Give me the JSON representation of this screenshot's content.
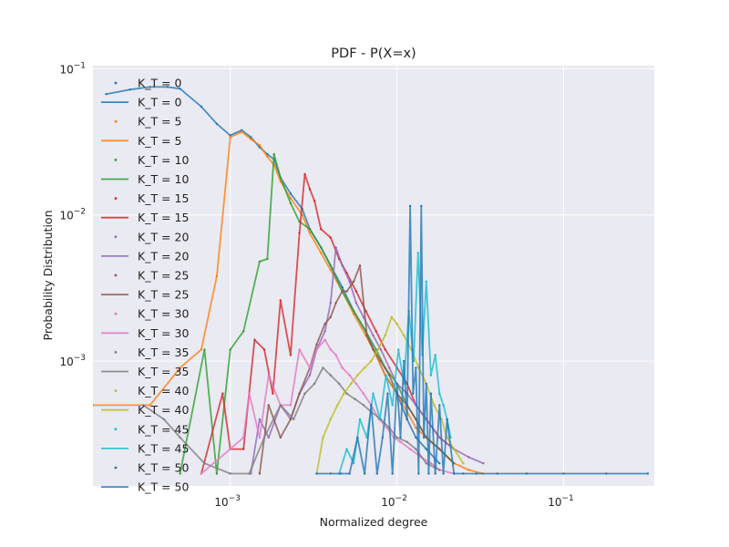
{
  "chart_data": {
    "type": "line",
    "title": "PDF - P(X=x)",
    "xlabel": "Normalized degree",
    "ylabel": "Probability Distribution",
    "xscale": "log",
    "yscale": "log",
    "xlim": [
      0.00015,
      0.35
    ],
    "ylim": [
      0.00014,
      0.105
    ],
    "grid": true,
    "legend_position": "top-left",
    "x_ticks": [
      {
        "value": 0.001,
        "label": "10",
        "sup": "−3"
      },
      {
        "value": 0.01,
        "label": "10",
        "sup": "−2"
      },
      {
        "value": 0.1,
        "label": "10",
        "sup": "−1"
      }
    ],
    "y_ticks": [
      {
        "value": 0.001,
        "label": "10",
        "sup": "−3"
      },
      {
        "value": 0.01,
        "label": "10",
        "sup": "−2"
      },
      {
        "value": 0.1,
        "label": "10",
        "sup": "−1"
      }
    ],
    "legend": [
      {
        "label": "K_T = 0",
        "kind": "marker",
        "series": 0
      },
      {
        "label": "K_T = 0",
        "kind": "line",
        "series": 0
      },
      {
        "label": "K_T = 5",
        "kind": "marker",
        "series": 1
      },
      {
        "label": "K_T = 5",
        "kind": "line",
        "series": 1
      },
      {
        "label": "K_T = 10",
        "kind": "marker",
        "series": 2
      },
      {
        "label": "K_T = 10",
        "kind": "line",
        "series": 2
      },
      {
        "label": "K_T = 15",
        "kind": "marker",
        "series": 3
      },
      {
        "label": "K_T = 15",
        "kind": "line",
        "series": 3
      },
      {
        "label": "K_T = 20",
        "kind": "marker",
        "series": 4
      },
      {
        "label": "K_T = 20",
        "kind": "line",
        "series": 4
      },
      {
        "label": "K_T = 25",
        "kind": "marker",
        "series": 5
      },
      {
        "label": "K_T = 25",
        "kind": "line",
        "series": 5
      },
      {
        "label": "K_T = 30",
        "kind": "marker",
        "series": 6
      },
      {
        "label": "K_T = 30",
        "kind": "line",
        "series": 6
      },
      {
        "label": "K_T = 35",
        "kind": "marker",
        "series": 7
      },
      {
        "label": "K_T = 35",
        "kind": "line",
        "series": 7
      },
      {
        "label": "K_T = 40",
        "kind": "marker",
        "series": 8
      },
      {
        "label": "K_T = 40",
        "kind": "line",
        "series": 8
      },
      {
        "label": "K_T = 45",
        "kind": "marker",
        "series": 9
      },
      {
        "label": "K_T = 45",
        "kind": "line",
        "series": 9
      },
      {
        "label": "K_T = 50",
        "kind": "marker",
        "series": 10
      },
      {
        "label": "K_T = 50",
        "kind": "line",
        "series": 10
      }
    ],
    "series": [
      {
        "name": "K_T = 0",
        "color": "#1f77b4",
        "x": [
          0.00018,
          0.00025,
          0.00033,
          0.00042,
          0.0005,
          0.00067,
          0.00083,
          0.001,
          0.00117,
          0.00133,
          0.0015,
          0.00167,
          0.00183,
          0.002,
          0.0023,
          0.0027,
          0.003,
          0.0035,
          0.004,
          0.0047,
          0.0055,
          0.0065,
          0.0075,
          0.0085,
          0.01,
          0.0115,
          0.013,
          0.015,
          0.018
        ],
        "y": [
          0.067,
          0.072,
          0.075,
          0.075,
          0.073,
          0.055,
          0.042,
          0.035,
          0.038,
          0.034,
          0.029,
          0.026,
          0.024,
          0.018,
          0.014,
          0.011,
          0.008,
          0.006,
          0.0045,
          0.0032,
          0.0022,
          0.0016,
          0.0011,
          0.0008,
          0.0006,
          0.0004,
          0.0003,
          0.00025,
          0.0002
        ]
      },
      {
        "name": "K_T = 5",
        "color": "#ff7f0e",
        "x": [
          0.00015,
          0.00033,
          0.0005,
          0.00067,
          0.00083,
          0.001,
          0.00117,
          0.00133,
          0.0015,
          0.00167,
          0.00183,
          0.002,
          0.0023,
          0.0027,
          0.003,
          0.0035,
          0.004,
          0.0047,
          0.0055,
          0.0065,
          0.0075,
          0.0085,
          0.01,
          0.0115,
          0.013,
          0.015,
          0.018,
          0.022,
          0.027,
          0.033
        ],
        "y": [
          0.0005,
          0.0005,
          0.0009,
          0.0012,
          0.0038,
          0.034,
          0.037,
          0.033,
          0.03,
          0.025,
          0.022,
          0.017,
          0.013,
          0.01,
          0.0075,
          0.0055,
          0.0042,
          0.003,
          0.0021,
          0.0015,
          0.0011,
          0.0008,
          0.0006,
          0.00045,
          0.00035,
          0.0003,
          0.00025,
          0.0002,
          0.00018,
          0.00017
        ]
      },
      {
        "name": "K_T = 10",
        "color": "#2ca02c",
        "x": [
          0.0005,
          0.0007,
          0.00083,
          0.001,
          0.0012,
          0.0015,
          0.00167,
          0.00183,
          0.002,
          0.0023,
          0.0026,
          0.003,
          0.0035,
          0.004,
          0.0047,
          0.0055,
          0.0065,
          0.0075,
          0.0085,
          0.01,
          0.0115,
          0.013,
          0.015,
          0.018,
          0.022
        ],
        "y": [
          0.00017,
          0.0012,
          0.00017,
          0.0012,
          0.0016,
          0.0048,
          0.005,
          0.026,
          0.018,
          0.012,
          0.009,
          0.008,
          0.006,
          0.0045,
          0.003,
          0.0022,
          0.0016,
          0.0012,
          0.0009,
          0.0007,
          0.0005,
          0.0004,
          0.0003,
          0.00025,
          0.0002
        ]
      },
      {
        "name": "K_T = 15",
        "color": "#d62728",
        "x": [
          0.00067,
          0.0009,
          0.001,
          0.0012,
          0.0014,
          0.0016,
          0.0018,
          0.002,
          0.0023,
          0.0026,
          0.0028,
          0.003,
          0.0032,
          0.0035,
          0.004,
          0.0045,
          0.005,
          0.0057,
          0.0065,
          0.0075,
          0.0085,
          0.01,
          0.0115,
          0.013,
          0.015,
          0.018,
          0.022
        ],
        "y": [
          0.00017,
          0.0006,
          0.00025,
          0.00025,
          0.0014,
          0.0012,
          0.0006,
          0.0026,
          0.0011,
          0.0075,
          0.019,
          0.015,
          0.0125,
          0.008,
          0.007,
          0.005,
          0.004,
          0.003,
          0.0022,
          0.0016,
          0.0012,
          0.0009,
          0.0007,
          0.0005,
          0.0004,
          0.0003,
          0.00025
        ]
      },
      {
        "name": "K_T = 20",
        "color": "#9467bd",
        "x": [
          0.00133,
          0.0015,
          0.0017,
          0.002,
          0.0023,
          0.0026,
          0.003,
          0.0033,
          0.0037,
          0.004,
          0.0043,
          0.0047,
          0.0052,
          0.0057,
          0.0063,
          0.0072,
          0.008,
          0.009,
          0.01,
          0.0115,
          0.013,
          0.015,
          0.018,
          0.022,
          0.027,
          0.033
        ],
        "y": [
          0.00017,
          0.0004,
          0.0003,
          0.0005,
          0.0004,
          0.0006,
          0.0008,
          0.0012,
          0.0016,
          0.0025,
          0.006,
          0.0045,
          0.0035,
          0.0025,
          0.002,
          0.0015,
          0.0012,
          0.0009,
          0.0007,
          0.0006,
          0.0005,
          0.0004,
          0.0003,
          0.00025,
          0.00022,
          0.0002
        ]
      },
      {
        "name": "K_T = 25",
        "color": "#8c564b",
        "x": [
          0.0015,
          0.0017,
          0.002,
          0.0023,
          0.0026,
          0.003,
          0.0033,
          0.0037,
          0.004,
          0.0043,
          0.0047,
          0.005,
          0.0055,
          0.006,
          0.0066,
          0.0072,
          0.008,
          0.009,
          0.01,
          0.0115,
          0.013,
          0.015,
          0.018,
          0.022
        ],
        "y": [
          0.00017,
          0.0005,
          0.0003,
          0.0004,
          0.0006,
          0.0009,
          0.0013,
          0.0018,
          0.002,
          0.0025,
          0.003,
          0.003,
          0.0035,
          0.0045,
          0.0015,
          0.0012,
          0.001,
          0.0008,
          0.0006,
          0.0005,
          0.0004,
          0.0003,
          0.00025,
          0.0002
        ]
      },
      {
        "name": "K_T = 30",
        "color": "#e377c2",
        "x": [
          0.00067,
          0.001,
          0.0012,
          0.0013,
          0.0015,
          0.0017,
          0.002,
          0.0023,
          0.0026,
          0.003,
          0.0033,
          0.0037,
          0.004,
          0.0043,
          0.0047,
          0.0052,
          0.0057,
          0.0063,
          0.007,
          0.0078,
          0.0087,
          0.0096,
          0.0105,
          0.012,
          0.014,
          0.016,
          0.018,
          0.022
        ],
        "y": [
          0.00017,
          0.00025,
          0.0003,
          0.0006,
          0.0003,
          0.0008,
          0.0005,
          0.0005,
          0.0012,
          0.0009,
          0.0012,
          0.0014,
          0.0012,
          0.0011,
          0.0009,
          0.0008,
          0.0007,
          0.0006,
          0.0005,
          0.0004,
          0.00035,
          0.0003,
          0.00028,
          0.00025,
          0.00022,
          0.0002,
          0.00018,
          0.00017
        ]
      },
      {
        "name": "K_T = 35",
        "color": "#7f7f7f",
        "x": [
          0.0003,
          0.0004,
          0.0005,
          0.0007,
          0.001,
          0.0013,
          0.0016,
          0.002,
          0.0024,
          0.0028,
          0.0032,
          0.0036,
          0.004,
          0.0045,
          0.005,
          0.0056,
          0.0063,
          0.007,
          0.008,
          0.009,
          0.01,
          0.0115,
          0.013,
          0.015,
          0.018
        ],
        "y": [
          0.0005,
          0.0004,
          0.0003,
          0.0002,
          0.00017,
          0.00017,
          0.0003,
          0.0005,
          0.0004,
          0.0006,
          0.0007,
          0.0009,
          0.0008,
          0.0007,
          0.0006,
          0.00055,
          0.0005,
          0.00045,
          0.0004,
          0.00035,
          0.0003,
          0.00028,
          0.00025,
          0.0002,
          0.00018
        ]
      },
      {
        "name": "K_T = 40",
        "color": "#bcbd22",
        "x": [
          0.0033,
          0.0036,
          0.004,
          0.0044,
          0.0048,
          0.0053,
          0.0058,
          0.0064,
          0.007,
          0.0077,
          0.0085,
          0.0093,
          0.01,
          0.011,
          0.0122,
          0.0135,
          0.015,
          0.0167,
          0.0185,
          0.02,
          0.022,
          0.025
        ],
        "y": [
          0.00017,
          0.0003,
          0.0004,
          0.0005,
          0.0006,
          0.0007,
          0.0008,
          0.0009,
          0.001,
          0.0012,
          0.0015,
          0.002,
          0.0018,
          0.0015,
          0.0012,
          0.0009,
          0.0007,
          0.0005,
          0.0004,
          0.0003,
          0.00025,
          0.0002
        ]
      },
      {
        "name": "K_T = 45",
        "color": "#17becf",
        "x": [
          0.0045,
          0.005,
          0.0055,
          0.006,
          0.0066,
          0.0072,
          0.0079,
          0.0086,
          0.0094,
          0.0102,
          0.011,
          0.0118,
          0.0126,
          0.0134,
          0.0142,
          0.015,
          0.016,
          0.017,
          0.018,
          0.019,
          0.02,
          0.021
        ],
        "y": [
          0.00017,
          0.00025,
          0.0002,
          0.0004,
          0.0003,
          0.0006,
          0.0004,
          0.0008,
          0.0005,
          0.0012,
          0.0007,
          0.0022,
          0.001,
          0.0055,
          0.0011,
          0.0035,
          0.0008,
          0.0011,
          0.0006,
          0.0005,
          0.0004,
          0.0003
        ]
      },
      {
        "name": "K_T = 50",
        "color": "#1f77b4",
        "x": [
          0.0033,
          0.004,
          0.0046,
          0.0052,
          0.0058,
          0.0064,
          0.007,
          0.0076,
          0.0082,
          0.0088,
          0.0094,
          0.01,
          0.0105,
          0.011,
          0.0115,
          0.012,
          0.0125,
          0.013,
          0.0135,
          0.014,
          0.0145,
          0.015,
          0.0155,
          0.016,
          0.017,
          0.018,
          0.019,
          0.02,
          0.022,
          0.025,
          0.03,
          0.04,
          0.06,
          0.1,
          0.18,
          0.32
        ],
        "y": [
          0.00017,
          0.00017,
          0.00017,
          0.00017,
          0.0003,
          0.00017,
          0.0005,
          0.00017,
          0.0003,
          0.0006,
          0.00017,
          0.0007,
          0.0003,
          0.001,
          0.0004,
          0.0115,
          0.0006,
          0.0009,
          0.00017,
          0.0115,
          0.0003,
          0.0007,
          0.00017,
          0.0006,
          0.00017,
          0.0005,
          0.00017,
          0.0004,
          0.00017,
          0.00017,
          0.00017,
          0.00017,
          0.00017,
          0.00017,
          0.00017,
          0.00017
        ]
      }
    ]
  }
}
